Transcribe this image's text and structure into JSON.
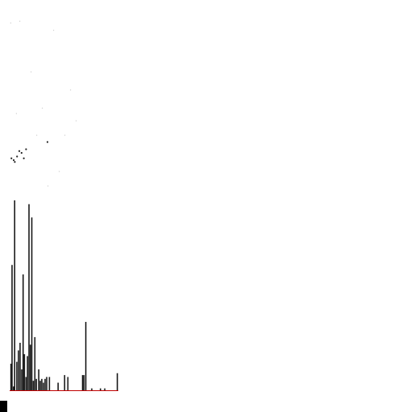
{
  "colors": {
    "background": "#ffffff",
    "bar": "#1a1a1a",
    "baseline": "#c00000",
    "dots": "#222222",
    "faint_dots": "#cfcfcf"
  },
  "chart_data": [
    {
      "type": "scatter",
      "title": "",
      "xlabel": "",
      "ylabel": "",
      "grid": false,
      "legend": "none",
      "xlim": [
        0,
        1
      ],
      "ylim": [
        0,
        1
      ],
      "points": [
        {
          "x": 0.03,
          "y": 0.17
        },
        {
          "x": 0.05,
          "y": 0.16
        },
        {
          "x": 0.08,
          "y": 0.18
        },
        {
          "x": 0.1,
          "y": 0.21
        },
        {
          "x": 0.12,
          "y": 0.2
        },
        {
          "x": 0.14,
          "y": 0.17
        },
        {
          "x": 0.06,
          "y": 0.15
        },
        {
          "x": 0.16,
          "y": 0.22
        },
        {
          "x": 0.35,
          "y": 0.26
        }
      ],
      "faint_points": [
        {
          "x": 0.02,
          "y": 0.92
        },
        {
          "x": 0.1,
          "y": 0.93
        },
        {
          "x": 0.4,
          "y": 0.88
        },
        {
          "x": 0.2,
          "y": 0.65
        },
        {
          "x": 0.55,
          "y": 0.55
        },
        {
          "x": 0.07,
          "y": 0.42
        },
        {
          "x": 0.3,
          "y": 0.45
        },
        {
          "x": 0.5,
          "y": 0.3
        },
        {
          "x": 0.6,
          "y": 0.38
        },
        {
          "x": 0.25,
          "y": 0.3
        },
        {
          "x": 0.45,
          "y": 0.1
        },
        {
          "x": 0.35,
          "y": 0.02
        }
      ]
    },
    {
      "type": "bar",
      "title": "",
      "xlabel": "",
      "ylabel": "",
      "grid": false,
      "legend": "none",
      "xlim": [
        0,
        1
      ],
      "ylim": [
        0,
        1
      ],
      "bars": [
        {
          "x": 0.006,
          "v": 0.14
        },
        {
          "x": 0.016,
          "v": 0.66
        },
        {
          "x": 0.03,
          "v": 0.02
        },
        {
          "x": 0.04,
          "v": 1.0
        },
        {
          "x": 0.06,
          "v": 0.15
        },
        {
          "x": 0.075,
          "v": 0.21
        },
        {
          "x": 0.09,
          "v": 0.25
        },
        {
          "x": 0.105,
          "v": 0.11
        },
        {
          "x": 0.118,
          "v": 0.61
        },
        {
          "x": 0.13,
          "v": 0.19
        },
        {
          "x": 0.145,
          "v": 0.07
        },
        {
          "x": 0.158,
          "v": 0.18
        },
        {
          "x": 0.172,
          "v": 0.98
        },
        {
          "x": 0.185,
          "v": 0.24
        },
        {
          "x": 0.198,
          "v": 0.91
        },
        {
          "x": 0.212,
          "v": 0.05
        },
        {
          "x": 0.226,
          "v": 0.28
        },
        {
          "x": 0.24,
          "v": 0.06
        },
        {
          "x": 0.262,
          "v": 0.11
        },
        {
          "x": 0.276,
          "v": 0.05
        },
        {
          "x": 0.29,
          "v": 0.06
        },
        {
          "x": 0.305,
          "v": 0.04
        },
        {
          "x": 0.32,
          "v": 0.06
        },
        {
          "x": 0.335,
          "v": 0.07
        },
        {
          "x": 0.36,
          "v": 0.07
        },
        {
          "x": 0.44,
          "v": 0.04
        },
        {
          "x": 0.5,
          "v": 0.08
        },
        {
          "x": 0.53,
          "v": 0.07
        },
        {
          "x": 0.665,
          "v": 0.08
        },
        {
          "x": 0.678,
          "v": 0.08
        },
        {
          "x": 0.695,
          "v": 0.36
        },
        {
          "x": 0.75,
          "v": 0.01
        },
        {
          "x": 0.83,
          "v": 0.01
        },
        {
          "x": 0.87,
          "v": 0.01
        },
        {
          "x": 0.985,
          "v": 0.09
        }
      ]
    }
  ]
}
